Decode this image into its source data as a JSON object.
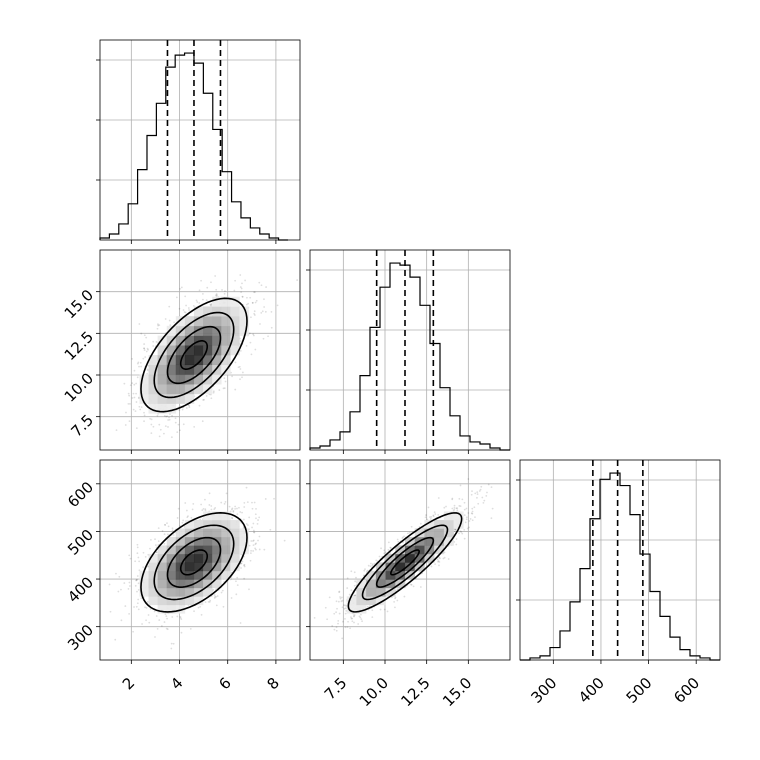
{
  "chart_data": {
    "type": "corner",
    "parameters": [
      {
        "range": [
          0.7,
          9.0
        ],
        "ticks": [
          2,
          4,
          6,
          8
        ],
        "tick_labels": [
          "2",
          "4",
          "6",
          "8"
        ],
        "quantiles": [
          3.5,
          4.6,
          5.7
        ],
        "hist": {
          "bin_edges": [
            0.7,
            1.09,
            1.48,
            1.87,
            2.26,
            2.65,
            3.04,
            3.43,
            3.82,
            4.21,
            4.6,
            4.99,
            5.38,
            5.77,
            6.16,
            6.55,
            6.94,
            7.33,
            7.72,
            8.11,
            8.5
          ],
          "counts": [
            1,
            3,
            8,
            18,
            35,
            52,
            68,
            86,
            92,
            93,
            88,
            73,
            55,
            34,
            19,
            11,
            6,
            3,
            1,
            0
          ]
        }
      },
      {
        "range": [
          5.5,
          17.5
        ],
        "ticks": [
          7.5,
          10.0,
          12.5,
          15.0
        ],
        "tick_labels": [
          "7.5",
          "10.0",
          "12.5",
          "15.0"
        ],
        "quantiles": [
          9.5,
          11.2,
          12.9
        ],
        "hist": {
          "bin_edges": [
            5.5,
            6.1,
            6.7,
            7.3,
            7.9,
            8.5,
            9.1,
            9.7,
            10.3,
            10.9,
            11.5,
            12.1,
            12.7,
            13.3,
            13.9,
            14.5,
            15.1,
            15.7,
            16.3,
            16.9,
            17.5
          ],
          "counts": [
            1,
            2,
            5,
            9,
            19,
            37,
            61,
            81,
            93,
            92,
            86,
            72,
            53,
            31,
            17,
            7,
            4,
            3,
            1,
            0
          ]
        }
      },
      {
        "range": [
          230,
          650
        ],
        "ticks": [
          300,
          400,
          500,
          600
        ],
        "tick_labels": [
          "300",
          "400",
          "500",
          "600"
        ],
        "quantiles": [
          383,
          435,
          488
        ],
        "hist": {
          "bin_edges": [
            230,
            251,
            272,
            293,
            314,
            335,
            356,
            377,
            398,
            419,
            440,
            461,
            482,
            503,
            524,
            545,
            566,
            587,
            608,
            629,
            650
          ],
          "counts": [
            0,
            1,
            2,
            6,
            14,
            28,
            44,
            68,
            87,
            90,
            84,
            70,
            51,
            33,
            21,
            11,
            5,
            2,
            1,
            0
          ]
        }
      }
    ],
    "pairs": [
      {
        "x": 0,
        "y": 1,
        "mean": [
          4.6,
          11.2
        ],
        "std": [
          1.1,
          1.7
        ],
        "rho": 0.6
      },
      {
        "x": 0,
        "y": 2,
        "mean": [
          4.6,
          435
        ],
        "std": [
          1.1,
          52
        ],
        "rho": 0.5
      },
      {
        "x": 1,
        "y": 2,
        "mean": [
          11.2,
          435
        ],
        "std": [
          1.7,
          52
        ],
        "rho": 0.88
      }
    ],
    "contour_levels_sigma": [
      0.5,
      1.0,
      1.5,
      2.0
    ]
  }
}
